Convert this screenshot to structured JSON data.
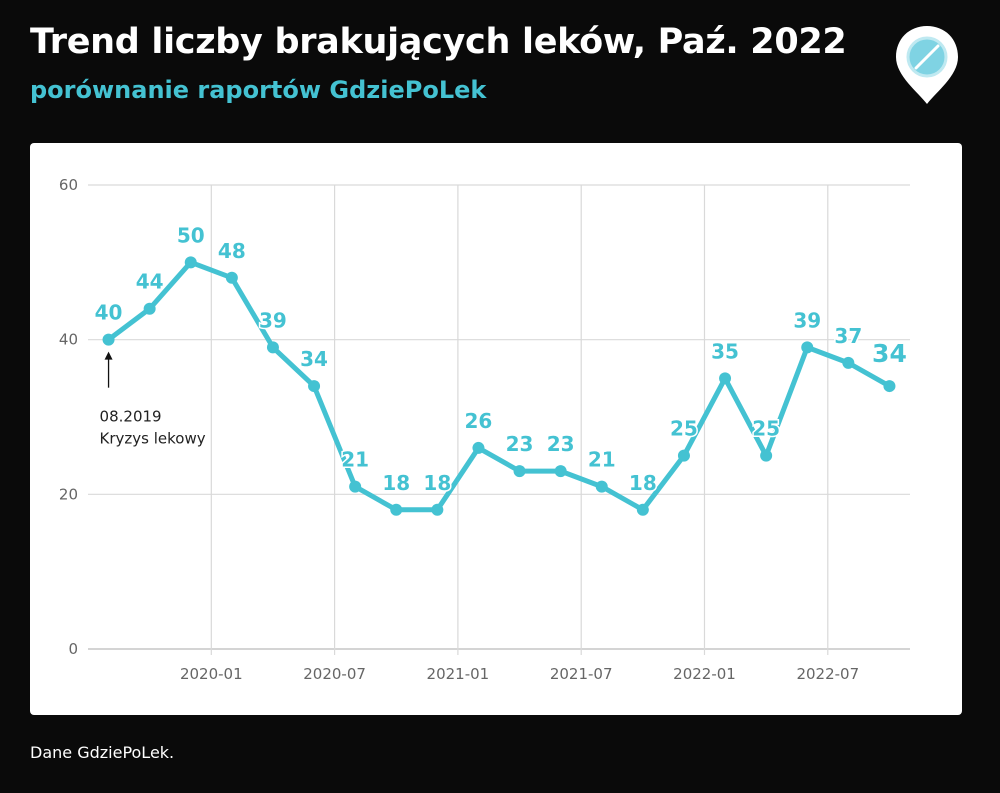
{
  "header": {
    "title": "Trend liczby brakujących leków, Paź. 2022",
    "subtitle": "porównanie raportów GdziePoLek"
  },
  "logo": {
    "icon": "pill-location-pin-icon",
    "pin_color": "#ffffff",
    "pill_color": "#7fd3e3"
  },
  "footer": {
    "source": "Dane GdziePoLek."
  },
  "colors": {
    "background": "#0a0a0a",
    "card": "#ffffff",
    "line": "#44c2d2",
    "grid": "#d9d9d9"
  },
  "chart_data": {
    "type": "line",
    "title": "Trend liczby brakujących leków, Paź. 2022",
    "subtitle": "porównanie raportów GdziePoLek",
    "x": [
      "2019-08",
      "2019-10",
      "2019-12",
      "2020-02",
      "2020-04",
      "2020-06",
      "2020-08",
      "2020-10",
      "2020-12",
      "2021-02",
      "2021-04",
      "2021-06",
      "2021-08",
      "2021-10",
      "2021-12",
      "2022-02",
      "2022-04",
      "2022-06",
      "2022-08",
      "2022-10"
    ],
    "series": [
      {
        "values": [
          40,
          44,
          50,
          48,
          39,
          34,
          21,
          18,
          18,
          26,
          23,
          23,
          21,
          18,
          25,
          35,
          25,
          39,
          37,
          34
        ]
      }
    ],
    "xticks": [
      "2020-01",
      "2020-07",
      "2021-01",
      "2021-07",
      "2022-01",
      "2022-07"
    ],
    "yticks": [
      0,
      20,
      40,
      60
    ],
    "ylim": [
      0,
      60
    ],
    "xlim": [
      "2019-07",
      "2022-11"
    ],
    "grid": true,
    "annotation": {
      "x": "2019-08",
      "y": 40,
      "lines": [
        "08.2019",
        "Kryzys lekowy"
      ]
    }
  }
}
